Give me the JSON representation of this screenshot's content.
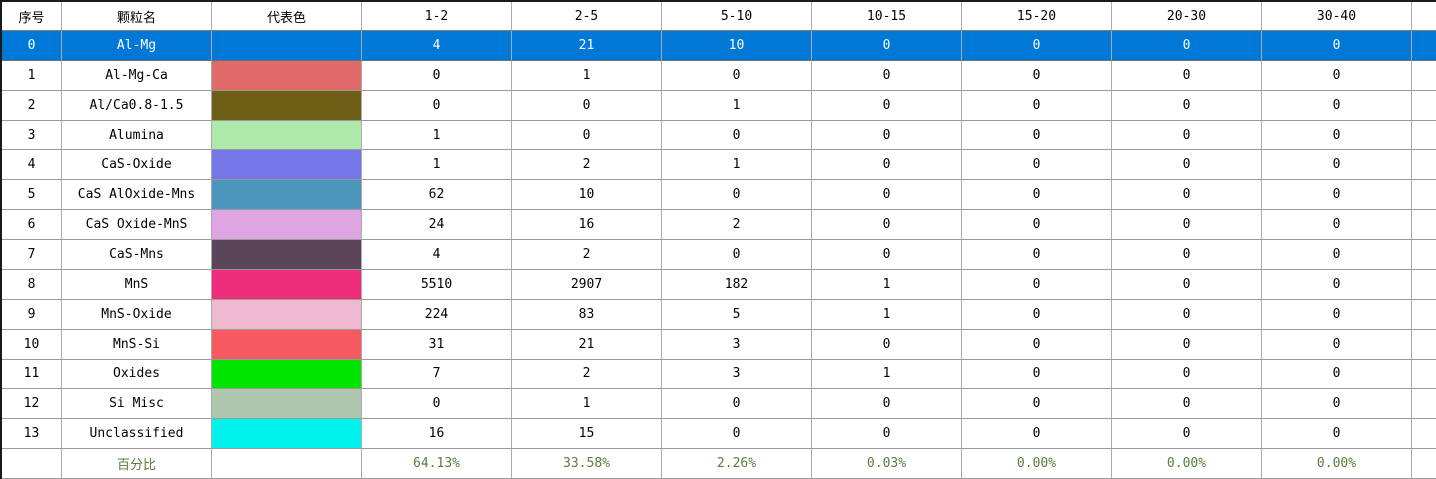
{
  "table": {
    "headers": [
      "序号",
      "颗粒名",
      "代表色",
      "1-2",
      "2-5",
      "5-10",
      "10-15",
      "15-20",
      "20-30",
      "30-40",
      ""
    ],
    "rows": [
      {
        "index": 0,
        "name": "Al-Mg",
        "color": null,
        "selected": true,
        "counts": [
          4,
          21,
          10,
          0,
          0,
          0,
          0
        ]
      },
      {
        "index": 1,
        "name": "Al-Mg-Ca",
        "color": "#e06a6a",
        "selected": false,
        "counts": [
          0,
          1,
          0,
          0,
          0,
          0,
          0
        ]
      },
      {
        "index": 2,
        "name": "Al/Ca0.8-1.5",
        "color": "#6f5f16",
        "selected": false,
        "counts": [
          0,
          0,
          1,
          0,
          0,
          0,
          0
        ]
      },
      {
        "index": 3,
        "name": "Alumina",
        "color": "#aee9a9",
        "selected": false,
        "counts": [
          1,
          0,
          0,
          0,
          0,
          0,
          0
        ]
      },
      {
        "index": 4,
        "name": "CaS-Oxide",
        "color": "#7577e8",
        "selected": false,
        "counts": [
          1,
          2,
          1,
          0,
          0,
          0,
          0
        ]
      },
      {
        "index": 5,
        "name": "CaS AlOxide-Mns",
        "color": "#4d96bb",
        "selected": false,
        "counts": [
          62,
          10,
          0,
          0,
          0,
          0,
          0
        ]
      },
      {
        "index": 6,
        "name": "CaS Oxide-MnS",
        "color": "#dfa5e3",
        "selected": false,
        "counts": [
          24,
          16,
          2,
          0,
          0,
          0,
          0
        ]
      },
      {
        "index": 7,
        "name": "CaS-Mns",
        "color": "#5a4658",
        "selected": false,
        "counts": [
          4,
          2,
          0,
          0,
          0,
          0,
          0
        ]
      },
      {
        "index": 8,
        "name": "MnS",
        "color": "#ee2d7b",
        "selected": false,
        "counts": [
          5510,
          2907,
          182,
          1,
          0,
          0,
          0
        ]
      },
      {
        "index": 9,
        "name": "MnS-Oxide",
        "color": "#efb9d0",
        "selected": false,
        "counts": [
          224,
          83,
          5,
          1,
          0,
          0,
          0
        ]
      },
      {
        "index": 10,
        "name": "MnS-Si",
        "color": "#f45a60",
        "selected": false,
        "counts": [
          31,
          21,
          3,
          0,
          0,
          0,
          0
        ]
      },
      {
        "index": 11,
        "name": "Oxides",
        "color": "#00e400",
        "selected": false,
        "counts": [
          7,
          2,
          3,
          1,
          0,
          0,
          0
        ]
      },
      {
        "index": 12,
        "name": "Si Misc",
        "color": "#aec6ae",
        "selected": false,
        "counts": [
          0,
          1,
          0,
          0,
          0,
          0,
          0
        ]
      },
      {
        "index": 13,
        "name": "Unclassified",
        "color": "#00f2ec",
        "selected": false,
        "counts": [
          16,
          15,
          0,
          0,
          0,
          0,
          0
        ]
      }
    ],
    "footer": {
      "label": "百分比",
      "percentages": [
        "64.13%",
        "33.58%",
        "2.26%",
        "0.03%",
        "0.00%",
        "0.00%",
        "0.00%"
      ]
    }
  },
  "colors": {
    "selection_blue": "#0078d7",
    "percent_green": "#567e3a",
    "grid_line": "#9a9a9a"
  }
}
